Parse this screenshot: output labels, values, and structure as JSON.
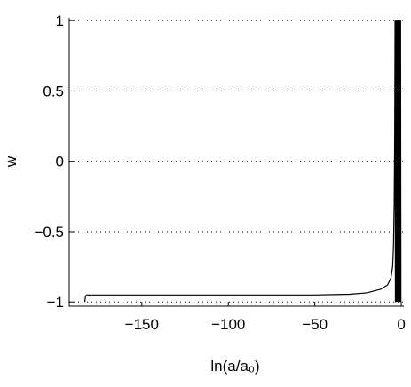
{
  "chart_data": {
    "type": "line",
    "x_label": "ln(a/a₀)",
    "y_label": "w",
    "xlim": [
      -192,
      1.5
    ],
    "ylim": [
      -1.03,
      1.02
    ],
    "xticks": [
      {
        "value": -150,
        "label": "−150"
      },
      {
        "value": -100,
        "label": "−100"
      },
      {
        "value": -50,
        "label": "−50"
      },
      0
    ],
    "yticks": [
      {
        "value": -1,
        "label": "−1"
      },
      {
        "value": -0.5,
        "label": "−0.5"
      },
      0,
      0.5,
      1
    ],
    "grid": "y",
    "series": [
      {
        "color": "#000000",
        "x": [
          -183,
          -182.6,
          -182,
          -180,
          -150,
          -100,
          -50,
          -30,
          -20,
          -12,
          -8,
          -6,
          -5,
          -4.5,
          -4.1,
          -3.8,
          -3.6,
          -3.4,
          -3.2,
          -3.0,
          -2.8,
          -2.6,
          -2.4,
          -2.2,
          -2.0,
          -1.8,
          -1.6,
          -1.4,
          -1.2,
          -1.0,
          -0.8,
          -0.6,
          -0.4,
          -0.2
        ],
        "y": [
          -1,
          -0.96,
          -0.95,
          -0.95,
          -0.95,
          -0.95,
          -0.95,
          -0.945,
          -0.935,
          -0.91,
          -0.88,
          -0.83,
          -0.75,
          -0.6,
          -0.3,
          0.2,
          1,
          -1,
          1,
          -1,
          1,
          -1,
          1,
          -1,
          1,
          -1,
          1,
          -1,
          1,
          -1,
          1,
          -1,
          1,
          -1
        ]
      }
    ]
  }
}
